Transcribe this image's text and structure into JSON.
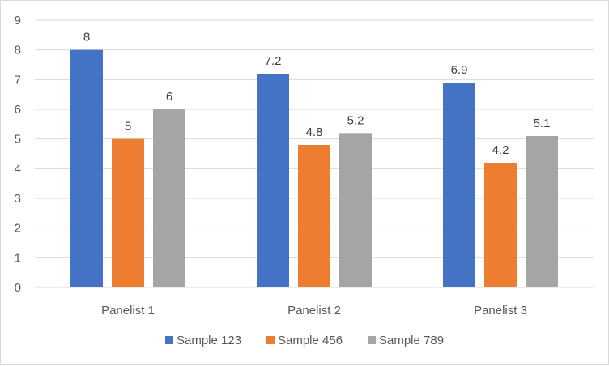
{
  "chart_data": {
    "type": "bar",
    "title": "",
    "xlabel": "",
    "ylabel": "",
    "categories": [
      "Panelist 1",
      "Panelist 2",
      "Panelist 3"
    ],
    "series": [
      {
        "name": "Sample 123",
        "values": [
          8,
          7.2,
          6.9
        ],
        "color": "#4472C4"
      },
      {
        "name": "Sample 456",
        "values": [
          5,
          4.8,
          4.2
        ],
        "color": "#ED7D31"
      },
      {
        "name": "Sample 789",
        "values": [
          6,
          5.2,
          5.1
        ],
        "color": "#A5A5A5"
      }
    ],
    "data_labels": [
      [
        "8",
        "7.2",
        "6.9"
      ],
      [
        "5",
        "4.8",
        "4.2"
      ],
      [
        "6",
        "5.2",
        "5.1"
      ]
    ],
    "ylim": [
      0,
      9
    ],
    "yticks": [
      "0",
      "1",
      "2",
      "3",
      "4",
      "5",
      "6",
      "7",
      "8",
      "9"
    ],
    "grid": true,
    "legend_position": "bottom",
    "gridline_color": "#d9d9d9"
  }
}
